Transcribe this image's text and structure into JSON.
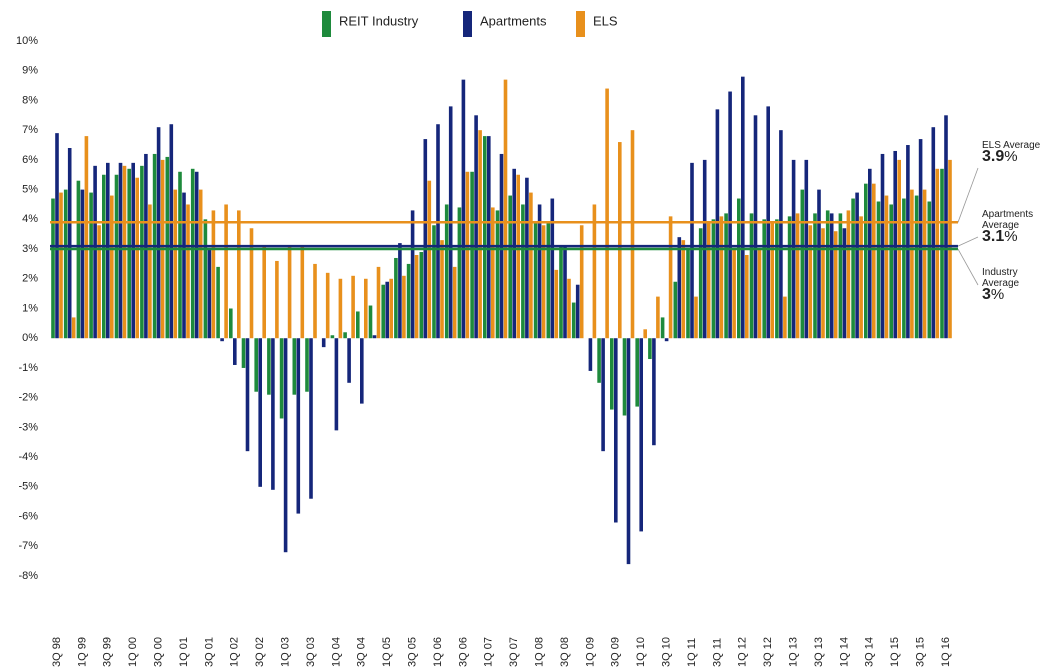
{
  "chart_data": {
    "type": "bar",
    "categories": [
      "3Q 98",
      null,
      "1Q 99",
      null,
      "3Q 99",
      null,
      "1Q 00",
      null,
      "3Q 00",
      null,
      "1Q 01",
      null,
      "3Q 01",
      null,
      "1Q 02",
      null,
      "3Q 02",
      null,
      "1Q 03",
      null,
      "3Q 03",
      null,
      "1Q 04",
      null,
      "3Q 04",
      null,
      "1Q 05",
      null,
      "3Q 05",
      null,
      "1Q 06",
      null,
      "3Q 06",
      null,
      "1Q 07",
      null,
      "3Q 07",
      null,
      "1Q 08",
      null,
      "3Q 08",
      null,
      "1Q 09",
      null,
      "3Q 09",
      null,
      "1Q 10",
      null,
      "3Q 10",
      null,
      "1Q 11",
      null,
      "3Q 11",
      null,
      "1Q 12",
      null,
      "3Q 12",
      null,
      "1Q 13",
      null,
      "3Q 13",
      null,
      "1Q 14",
      null,
      "3Q 14",
      null,
      "1Q 15",
      null,
      "3Q 15",
      null,
      "1Q 16"
    ],
    "series": [
      {
        "name": "REIT Industry",
        "color": "#1e8a3c",
        "average": 3.0,
        "average_label": "Industry Average",
        "average_unit": "%",
        "values": [
          4.7,
          5.0,
          5.3,
          4.9,
          5.5,
          5.5,
          5.7,
          5.8,
          6.2,
          6.1,
          5.6,
          5.7,
          4.0,
          2.4,
          1.0,
          -1.0,
          -1.8,
          -1.9,
          -2.7,
          -1.9,
          -1.8,
          0,
          0.1,
          0.2,
          0.9,
          1.1,
          1.8,
          2.7,
          2.5,
          2.9,
          3.8,
          4.5,
          4.4,
          5.6,
          6.8,
          4.3,
          4.8,
          4.5,
          3.9,
          3.9,
          3.1,
          1.2,
          0,
          -1.5,
          -2.4,
          -2.6,
          -2.3,
          -0.7,
          0.7,
          1.9,
          3.0,
          3.7,
          4.0,
          4.2,
          4.7,
          4.2,
          4.0,
          4.0,
          4.1,
          5.0,
          4.2,
          4.3,
          4.2,
          4.7,
          5.2,
          4.6,
          4.5,
          4.7,
          4.8,
          4.6,
          5.7
        ]
      },
      {
        "name": "Apartments",
        "color": "#15267a",
        "average": 3.1,
        "average_label": "Apartments Average",
        "average_unit": "%",
        "values": [
          6.9,
          6.4,
          5.0,
          5.8,
          5.9,
          5.9,
          5.9,
          6.2,
          7.1,
          7.2,
          4.9,
          5.6,
          3.0,
          -0.1,
          -0.9,
          -3.8,
          -5.0,
          -5.1,
          -7.2,
          -5.9,
          -5.4,
          -0.3,
          -3.1,
          -1.5,
          -2.2,
          0.1,
          1.9,
          3.2,
          4.3,
          6.7,
          7.2,
          7.8,
          8.7,
          7.5,
          6.8,
          6.2,
          5.7,
          5.4,
          4.5,
          4.7,
          3.1,
          1.8,
          -1.1,
          -3.8,
          -6.2,
          -7.6,
          -6.5,
          -3.6,
          -0.1,
          3.4,
          5.9,
          6.0,
          7.7,
          8.3,
          8.8,
          7.5,
          7.8,
          7.0,
          6.0,
          6.0,
          5.0,
          4.2,
          3.7,
          4.9,
          5.7,
          6.2,
          6.3,
          6.5,
          6.7,
          7.1,
          7.5
        ]
      },
      {
        "name": "ELS",
        "color": "#e8901c",
        "average": 3.9,
        "average_label": "ELS Average",
        "average_unit": "%",
        "values": [
          4.9,
          0.7,
          6.8,
          3.8,
          4.8,
          5.8,
          5.4,
          4.5,
          6.0,
          5.0,
          4.5,
          5.0,
          4.3,
          4.5,
          4.3,
          3.7,
          3.1,
          2.6,
          3.1,
          3.1,
          2.5,
          2.2,
          2.0,
          2.1,
          2.0,
          2.4,
          2.0,
          2.1,
          2.8,
          5.3,
          3.3,
          2.4,
          5.6,
          7.0,
          4.4,
          8.7,
          5.5,
          4.9,
          3.8,
          2.3,
          2.0,
          3.8,
          4.5,
          8.4,
          6.6,
          7.0,
          0.3,
          1.4,
          4.1,
          3.3,
          1.4,
          3.9,
          4.1,
          3.0,
          2.8,
          3.0,
          3.9,
          1.4,
          4.2,
          3.8,
          3.7,
          3.6,
          4.3,
          4.1,
          5.2,
          4.8,
          6.0,
          5.0,
          5.0,
          5.7,
          6.0
        ]
      }
    ],
    "ylim": [
      -8,
      10
    ],
    "yticks": [
      {
        "value": -8,
        "label": "-8%"
      },
      {
        "value": -7,
        "label": "-7%"
      },
      {
        "value": -6,
        "label": "-6%"
      },
      {
        "value": -5,
        "label": "-5%"
      },
      {
        "value": -4,
        "label": "-4%"
      },
      {
        "value": -3,
        "label": "-3%"
      },
      {
        "value": -2,
        "label": "-2%"
      },
      {
        "value": -1,
        "label": "-1%"
      },
      {
        "value": 0,
        "label": "0%"
      },
      {
        "value": 1,
        "label": "1%"
      },
      {
        "value": 2,
        "label": "2%"
      },
      {
        "value": 3,
        "label": "3%"
      },
      {
        "value": 4,
        "label": "4%"
      },
      {
        "value": 5,
        "label": "5%"
      },
      {
        "value": 6,
        "label": "6%"
      },
      {
        "value": 7,
        "label": "7%"
      },
      {
        "value": 8,
        "label": "8%"
      },
      {
        "value": 9,
        "label": "9%"
      },
      {
        "value": 10,
        "label": "10%"
      }
    ],
    "grid": false,
    "legend": "top"
  }
}
